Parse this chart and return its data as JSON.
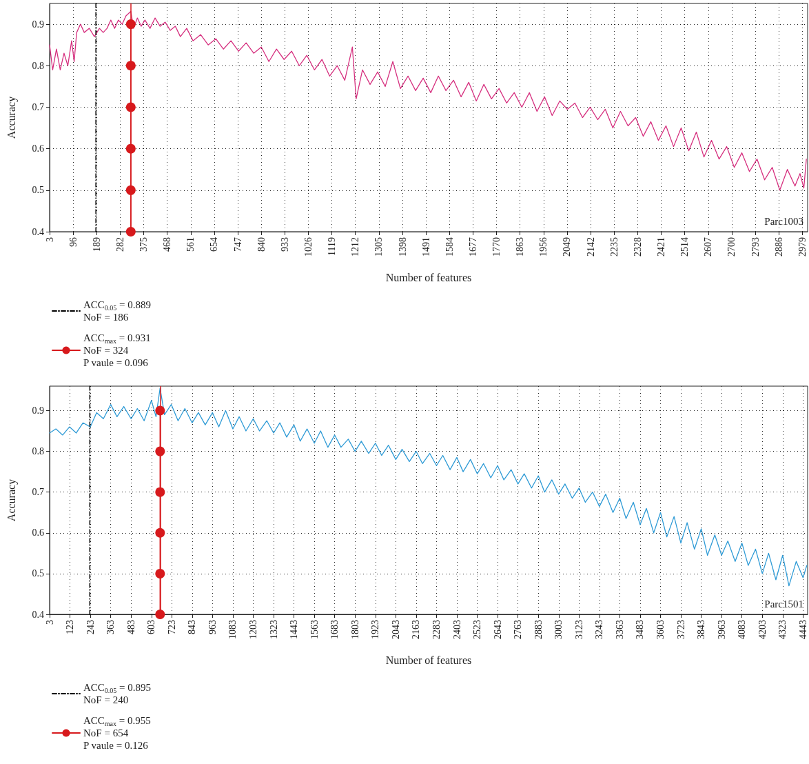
{
  "chart_data": [
    {
      "type": "line",
      "xlabel": "Number of features",
      "ylabel": "Accuracy",
      "annotations": [
        "Parc1003"
      ],
      "grid": true,
      "legend": "bottom left",
      "xlim": [
        3,
        3000
      ],
      "xticks": [
        3,
        96,
        189,
        282,
        375,
        468,
        561,
        654,
        747,
        840,
        933,
        1026,
        1119,
        1212,
        1305,
        1398,
        1491,
        1584,
        1677,
        1770,
        1863,
        1956,
        2049,
        2142,
        2235,
        2328,
        2421,
        2514,
        2607,
        2700,
        2793,
        2886,
        2979
      ],
      "ylim": [
        0.4,
        0.95
      ],
      "yticks": [
        0.4,
        0.5,
        0.6,
        0.7,
        0.8,
        0.9
      ],
      "x": [
        3,
        15,
        30,
        45,
        60,
        75,
        90,
        100,
        110,
        125,
        140,
        160,
        180,
        200,
        215,
        230,
        245,
        260,
        275,
        290,
        305,
        324,
        335,
        350,
        365,
        380,
        400,
        420,
        440,
        460,
        480,
        500,
        520,
        545,
        570,
        600,
        630,
        660,
        690,
        720,
        750,
        780,
        810,
        840,
        870,
        900,
        930,
        960,
        990,
        1020,
        1050,
        1080,
        1110,
        1140,
        1170,
        1200,
        1215,
        1240,
        1270,
        1300,
        1330,
        1360,
        1390,
        1420,
        1450,
        1480,
        1510,
        1540,
        1570,
        1600,
        1630,
        1660,
        1690,
        1720,
        1750,
        1780,
        1810,
        1840,
        1870,
        1900,
        1930,
        1960,
        1990,
        2020,
        2050,
        2080,
        2110,
        2140,
        2170,
        2200,
        2230,
        2260,
        2290,
        2320,
        2350,
        2380,
        2410,
        2440,
        2470,
        2500,
        2530,
        2560,
        2590,
        2620,
        2650,
        2680,
        2710,
        2740,
        2770,
        2800,
        2830,
        2860,
        2890,
        2920,
        2950,
        2970,
        2985,
        2995
      ],
      "ref_lines": [
        {
          "axis": "x",
          "value": 324,
          "color": "#d7191c"
        }
      ],
      "series": [
        {
          "color": "#d6307f",
          "marker": "none",
          "values": [
            0.85,
            0.79,
            0.84,
            0.79,
            0.83,
            0.8,
            0.86,
            0.81,
            0.88,
            0.9,
            0.88,
            0.89,
            0.87,
            0.89,
            0.88,
            0.89,
            0.91,
            0.89,
            0.91,
            0.9,
            0.92,
            0.931,
            0.89,
            0.915,
            0.895,
            0.91,
            0.89,
            0.915,
            0.895,
            0.905,
            0.885,
            0.895,
            0.87,
            0.89,
            0.86,
            0.875,
            0.85,
            0.865,
            0.84,
            0.86,
            0.835,
            0.855,
            0.83,
            0.845,
            0.81,
            0.84,
            0.815,
            0.835,
            0.8,
            0.825,
            0.79,
            0.815,
            0.775,
            0.8,
            0.765,
            0.845,
            0.72,
            0.79,
            0.755,
            0.785,
            0.75,
            0.81,
            0.745,
            0.775,
            0.74,
            0.77,
            0.735,
            0.775,
            0.74,
            0.765,
            0.725,
            0.76,
            0.715,
            0.755,
            0.72,
            0.745,
            0.71,
            0.735,
            0.7,
            0.735,
            0.69,
            0.725,
            0.68,
            0.715,
            0.695,
            0.71,
            0.675,
            0.7,
            0.67,
            0.695,
            0.65,
            0.69,
            0.655,
            0.675,
            0.63,
            0.665,
            0.62,
            0.655,
            0.605,
            0.65,
            0.595,
            0.64,
            0.58,
            0.62,
            0.575,
            0.605,
            0.555,
            0.59,
            0.545,
            0.575,
            0.525,
            0.555,
            0.5,
            0.55,
            0.51,
            0.54,
            0.505,
            0.575
          ]
        },
        {
          "name": "ACC$_{0.05}$ = 0.889\nNoF = 186",
          "color": "#000000",
          "marker": "none",
          "line_style": "dashdot",
          "x": [
            186,
            186
          ],
          "values": [
            0.4,
            0.95
          ]
        },
        {
          "name": "ACC$_{max}$ = 0.931\nNoF = 324\nP vaule = 0.096",
          "color": "#d7191c",
          "marker": "circle",
          "x": [
            324,
            324,
            324,
            324,
            324,
            324
          ],
          "values": [
            0.4,
            0.5,
            0.6,
            0.7,
            0.8,
            0.9
          ]
        }
      ]
    },
    {
      "type": "line",
      "xlabel": "Number of features",
      "ylabel": "Accuracy",
      "annotations": [
        "Parc1501"
      ],
      "grid": true,
      "legend": "bottom left",
      "xlim": [
        3,
        4470
      ],
      "xticks": [
        3,
        123,
        243,
        363,
        483,
        603,
        723,
        843,
        963,
        1083,
        1203,
        1323,
        1443,
        1563,
        1683,
        1803,
        1923,
        2043,
        2163,
        2283,
        2403,
        2523,
        2643,
        2763,
        2883,
        3003,
        3123,
        3243,
        3363,
        3483,
        3603,
        3723,
        3843,
        3963,
        4083,
        4203,
        4323,
        4443
      ],
      "ylim": [
        0.4,
        0.96
      ],
      "yticks": [
        0.4,
        0.5,
        0.6,
        0.7,
        0.8,
        0.9
      ],
      "x": [
        3,
        40,
        80,
        120,
        160,
        200,
        243,
        280,
        320,
        363,
        400,
        440,
        483,
        520,
        560,
        603,
        630,
        654,
        680,
        720,
        760,
        800,
        843,
        880,
        920,
        963,
        1000,
        1040,
        1083,
        1120,
        1160,
        1203,
        1240,
        1283,
        1323,
        1360,
        1400,
        1443,
        1480,
        1520,
        1563,
        1600,
        1643,
        1683,
        1720,
        1763,
        1803,
        1840,
        1883,
        1923,
        1960,
        2000,
        2043,
        2080,
        2123,
        2163,
        2200,
        2243,
        2283,
        2320,
        2363,
        2403,
        2440,
        2483,
        2523,
        2560,
        2603,
        2643,
        2680,
        2723,
        2763,
        2800,
        2843,
        2883,
        2920,
        2963,
        3003,
        3040,
        3083,
        3123,
        3160,
        3203,
        3243,
        3280,
        3323,
        3363,
        3400,
        3443,
        3483,
        3520,
        3563,
        3603,
        3640,
        3683,
        3723,
        3760,
        3803,
        3843,
        3880,
        3923,
        3963,
        4000,
        4043,
        4083,
        4120,
        4163,
        4203,
        4240,
        4283,
        4323,
        4360,
        4403,
        4443,
        4465
      ],
      "ref_lines": [
        {
          "axis": "x",
          "value": 654,
          "color": "#d7191c"
        }
      ],
      "series": [
        {
          "color": "#2f9bd6",
          "marker": "none",
          "values": [
            0.845,
            0.855,
            0.84,
            0.86,
            0.845,
            0.87,
            0.86,
            0.895,
            0.88,
            0.915,
            0.885,
            0.91,
            0.88,
            0.905,
            0.875,
            0.925,
            0.885,
            0.955,
            0.89,
            0.915,
            0.875,
            0.905,
            0.87,
            0.895,
            0.865,
            0.895,
            0.86,
            0.9,
            0.855,
            0.885,
            0.85,
            0.88,
            0.85,
            0.875,
            0.845,
            0.87,
            0.835,
            0.865,
            0.825,
            0.855,
            0.82,
            0.85,
            0.81,
            0.84,
            0.81,
            0.83,
            0.8,
            0.825,
            0.795,
            0.82,
            0.79,
            0.815,
            0.78,
            0.805,
            0.775,
            0.8,
            0.77,
            0.795,
            0.765,
            0.79,
            0.755,
            0.785,
            0.75,
            0.78,
            0.745,
            0.77,
            0.735,
            0.765,
            0.73,
            0.755,
            0.72,
            0.745,
            0.71,
            0.74,
            0.7,
            0.73,
            0.695,
            0.72,
            0.685,
            0.71,
            0.675,
            0.7,
            0.665,
            0.695,
            0.65,
            0.685,
            0.635,
            0.675,
            0.62,
            0.66,
            0.6,
            0.65,
            0.59,
            0.64,
            0.575,
            0.625,
            0.56,
            0.61,
            0.545,
            0.595,
            0.545,
            0.58,
            0.53,
            0.575,
            0.52,
            0.56,
            0.5,
            0.55,
            0.485,
            0.545,
            0.47,
            0.53,
            0.49,
            0.52
          ]
        },
        {
          "name": "ACC$_{0.05}$ = 0.895\nNoF = 240",
          "color": "#000000",
          "marker": "none",
          "line_style": "dashdot",
          "x": [
            240,
            240
          ],
          "values": [
            0.4,
            0.96
          ]
        },
        {
          "name": "ACC$_{max}$ = 0.955\nNoF = 654\nP vaule = 0.126",
          "color": "#d7191c",
          "marker": "circle",
          "x": [
            654,
            654,
            654,
            654,
            654,
            654
          ],
          "values": [
            0.4,
            0.5,
            0.6,
            0.7,
            0.8,
            0.9
          ]
        }
      ]
    }
  ]
}
